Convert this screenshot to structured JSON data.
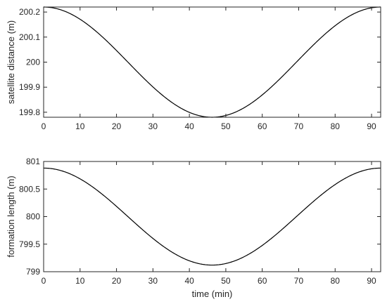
{
  "chart_data": [
    {
      "type": "line",
      "title": "",
      "xlabel": "",
      "ylabel": "satellite distance (m)",
      "xlim": [
        0,
        92.5
      ],
      "ylim": [
        199.78,
        200.22
      ],
      "xticks": [
        0,
        10,
        20,
        30,
        40,
        50,
        60,
        70,
        80,
        90
      ],
      "yticks": [
        199.8,
        199.9,
        200,
        200.1,
        200.2
      ],
      "ytick_labels": [
        "199.8",
        "199.9",
        "200",
        "200.1",
        "200.2"
      ],
      "grid": false,
      "series": [
        {
          "color": "#000000",
          "mean": 200.0,
          "amplitude": 0.22,
          "period_min": 92.5,
          "peak_at_min": 0
        }
      ]
    },
    {
      "type": "line",
      "title": "",
      "xlabel": "time (min)",
      "ylabel": "formation length (m)",
      "xlim": [
        0,
        92.5
      ],
      "ylim": [
        799,
        801
      ],
      "xticks": [
        0,
        10,
        20,
        30,
        40,
        50,
        60,
        70,
        80,
        90
      ],
      "yticks": [
        799,
        799.5,
        800,
        800.5,
        801
      ],
      "ytick_labels": [
        "799",
        "799.5",
        "800",
        "800.5",
        "801"
      ],
      "grid": false,
      "series": [
        {
          "color": "#000000",
          "mean": 800.0,
          "amplitude": 0.88,
          "period_min": 92.5,
          "peak_at_min": 0
        }
      ]
    }
  ]
}
